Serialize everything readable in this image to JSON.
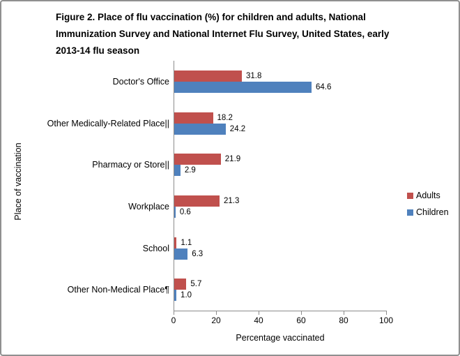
{
  "title_lines": [
    "Figure 2. Place of flu vaccination (%) for children and adults, National",
    "Immunization Survey and National Internet Flu Survey, United States, early",
    "2013-14 flu season"
  ],
  "chart_data": {
    "type": "bar",
    "orientation": "horizontal",
    "title": "Figure 2. Place of flu vaccination (%) for children and adults, National Immunization Survey and National Internet Flu Survey, United States, early 2013-14 flu season",
    "categories": [
      "Doctor's Office",
      "Other Medically-Related Place||",
      "Pharmacy or Store||",
      "Workplace",
      "School",
      "Other Non-Medical Place¶"
    ],
    "series": [
      {
        "name": "Adults",
        "color": "#C0504D",
        "values": [
          31.8,
          18.2,
          21.9,
          21.3,
          1.1,
          5.7
        ]
      },
      {
        "name": "Children",
        "color": "#4F81BD",
        "values": [
          64.6,
          24.2,
          2.9,
          0.6,
          6.3,
          1.0
        ]
      }
    ],
    "xlabel": "Percentage vaccinated",
    "ylabel": "Place of vaccination",
    "xlim": [
      0,
      100
    ],
    "x_ticks": [
      0,
      20,
      40,
      60,
      80,
      100
    ],
    "grid": false,
    "data_labels": true,
    "legend_position": "right",
    "value_label_decimals": 1
  },
  "colors": {
    "axis": "#8c8c8c",
    "frame_border": "#909090",
    "text": "#000000"
  }
}
